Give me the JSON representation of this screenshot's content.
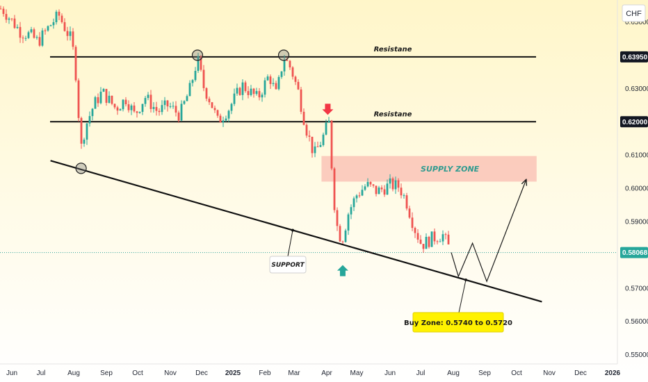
{
  "chart_data": {
    "type": "candlestick",
    "currency": "CHF",
    "y_axis": {
      "range": [
        0.5472,
        0.6566
      ],
      "ticks": [
        "0.65000",
        "0.63000",
        "0.61000",
        "0.60000",
        "0.59000",
        "0.57000",
        "0.56000",
        "0.55000"
      ],
      "tick_values": [
        0.65,
        0.63,
        0.61,
        0.6,
        0.59,
        0.57,
        0.56,
        0.55
      ]
    },
    "x_axis": {
      "labels": [
        "Jun",
        "Jul",
        "Aug",
        "Sep",
        "Oct",
        "Nov",
        "Dec",
        "2025",
        "Feb",
        "Mar",
        "Apr",
        "May",
        "Jun",
        "Jul",
        "Aug",
        "Sep",
        "Oct",
        "Nov",
        "Dec",
        "2026"
      ]
    },
    "price_badges": [
      {
        "label": "0.63950",
        "value": 0.6395,
        "style": "dark"
      },
      {
        "label": "0.62000",
        "value": 0.62,
        "style": "dark"
      },
      {
        "label": "0.58068",
        "value": 0.58068,
        "style": "current"
      }
    ],
    "resistance_lines": [
      {
        "label": "Resistane",
        "value": 0.6395
      },
      {
        "label": "Resistane",
        "value": 0.62
      }
    ],
    "support_line": {
      "label": "SUPPORT",
      "from": {
        "x": "2024-07-10",
        "y": 0.6083
      },
      "to": {
        "x": "2025-10-25",
        "y": 0.5659
      }
    },
    "supply_zone": {
      "label": "SUPPLY ZONE",
      "from": "2025-03-27",
      "to": "2025-10-20",
      "low": 0.602,
      "high": 0.6097
    },
    "buy_zone": {
      "label": "Buy Zone: 0.5740 to 0.5720"
    },
    "price_series": [
      {
        "x": "2024-05-22",
        "y": 0.654
      },
      {
        "x": "2024-06-02",
        "y": 0.65
      },
      {
        "x": "2024-06-10",
        "y": 0.647
      },
      {
        "x": "2024-06-20",
        "y": 0.646
      },
      {
        "x": "2024-06-28",
        "y": 0.644
      },
      {
        "x": "2024-07-05",
        "y": 0.647
      },
      {
        "x": "2024-07-12",
        "y": 0.65
      },
      {
        "x": "2024-07-18",
        "y": 0.652
      },
      {
        "x": "2024-07-24",
        "y": 0.648
      },
      {
        "x": "2024-07-29",
        "y": 0.645
      },
      {
        "x": "2024-08-02",
        "y": 0.639
      },
      {
        "x": "2024-08-05",
        "y": 0.625
      },
      {
        "x": "2024-08-08",
        "y": 0.612
      },
      {
        "x": "2024-08-12",
        "y": 0.6185
      },
      {
        "x": "2024-08-20",
        "y": 0.625
      },
      {
        "x": "2024-08-28",
        "y": 0.629
      },
      {
        "x": "2024-09-10",
        "y": 0.624
      },
      {
        "x": "2024-09-20",
        "y": 0.627
      },
      {
        "x": "2024-09-28",
        "y": 0.622
      },
      {
        "x": "2024-10-08",
        "y": 0.6275
      },
      {
        "x": "2024-10-20",
        "y": 0.623
      },
      {
        "x": "2024-10-30",
        "y": 0.625
      },
      {
        "x": "2024-11-10",
        "y": 0.622
      },
      {
        "x": "2024-11-20",
        "y": 0.63
      },
      {
        "x": "2024-11-27",
        "y": 0.639
      },
      {
        "x": "2024-12-03",
        "y": 0.6305
      },
      {
        "x": "2024-12-10",
        "y": 0.626
      },
      {
        "x": "2024-12-17",
        "y": 0.62
      },
      {
        "x": "2024-12-28",
        "y": 0.624
      },
      {
        "x": "2025-01-10",
        "y": 0.631
      },
      {
        "x": "2025-01-25",
        "y": 0.627
      },
      {
        "x": "2025-02-05",
        "y": 0.634
      },
      {
        "x": "2025-02-12",
        "y": 0.628
      },
      {
        "x": "2025-02-19",
        "y": 0.6395
      },
      {
        "x": "2025-02-26",
        "y": 0.636
      },
      {
        "x": "2025-03-05",
        "y": 0.629
      },
      {
        "x": "2025-03-12",
        "y": 0.6185
      },
      {
        "x": "2025-03-20",
        "y": 0.61
      },
      {
        "x": "2025-03-28",
        "y": 0.615
      },
      {
        "x": "2025-04-03",
        "y": 0.62
      },
      {
        "x": "2025-04-07",
        "y": 0.602
      },
      {
        "x": "2025-04-10",
        "y": 0.59
      },
      {
        "x": "2025-04-16",
        "y": 0.584
      },
      {
        "x": "2025-04-23",
        "y": 0.593
      },
      {
        "x": "2025-05-01",
        "y": 0.598
      },
      {
        "x": "2025-05-10",
        "y": 0.601
      },
      {
        "x": "2025-05-20",
        "y": 0.599
      },
      {
        "x": "2025-06-01",
        "y": 0.601
      },
      {
        "x": "2025-06-10",
        "y": 0.6005
      },
      {
        "x": "2025-06-17",
        "y": 0.596
      },
      {
        "x": "2025-06-25",
        "y": 0.588
      },
      {
        "x": "2025-07-02",
        "y": 0.583
      },
      {
        "x": "2025-07-12",
        "y": 0.585
      },
      {
        "x": "2025-07-22",
        "y": 0.586
      },
      {
        "x": "2025-07-30",
        "y": 0.5807
      }
    ],
    "forecast_path": [
      {
        "x": "2025-07-30",
        "y": 0.5807
      },
      {
        "x": "2025-08-06",
        "y": 0.5735
      },
      {
        "x": "2025-08-20",
        "y": 0.5835
      },
      {
        "x": "2025-09-03",
        "y": 0.572
      },
      {
        "x": "2025-10-10",
        "y": 0.6025
      }
    ],
    "markers": [
      {
        "type": "circle",
        "x": "2024-08-08",
        "y": 0.606
      },
      {
        "type": "circle",
        "x": "2024-11-27",
        "y": 0.64
      },
      {
        "type": "circle",
        "x": "2025-02-19",
        "y": 0.64
      },
      {
        "type": "down-arrow",
        "x": "2025-04-02",
        "y": 0.6225
      },
      {
        "type": "up-arrow",
        "x": "2025-04-17",
        "y": 0.5765
      }
    ]
  }
}
